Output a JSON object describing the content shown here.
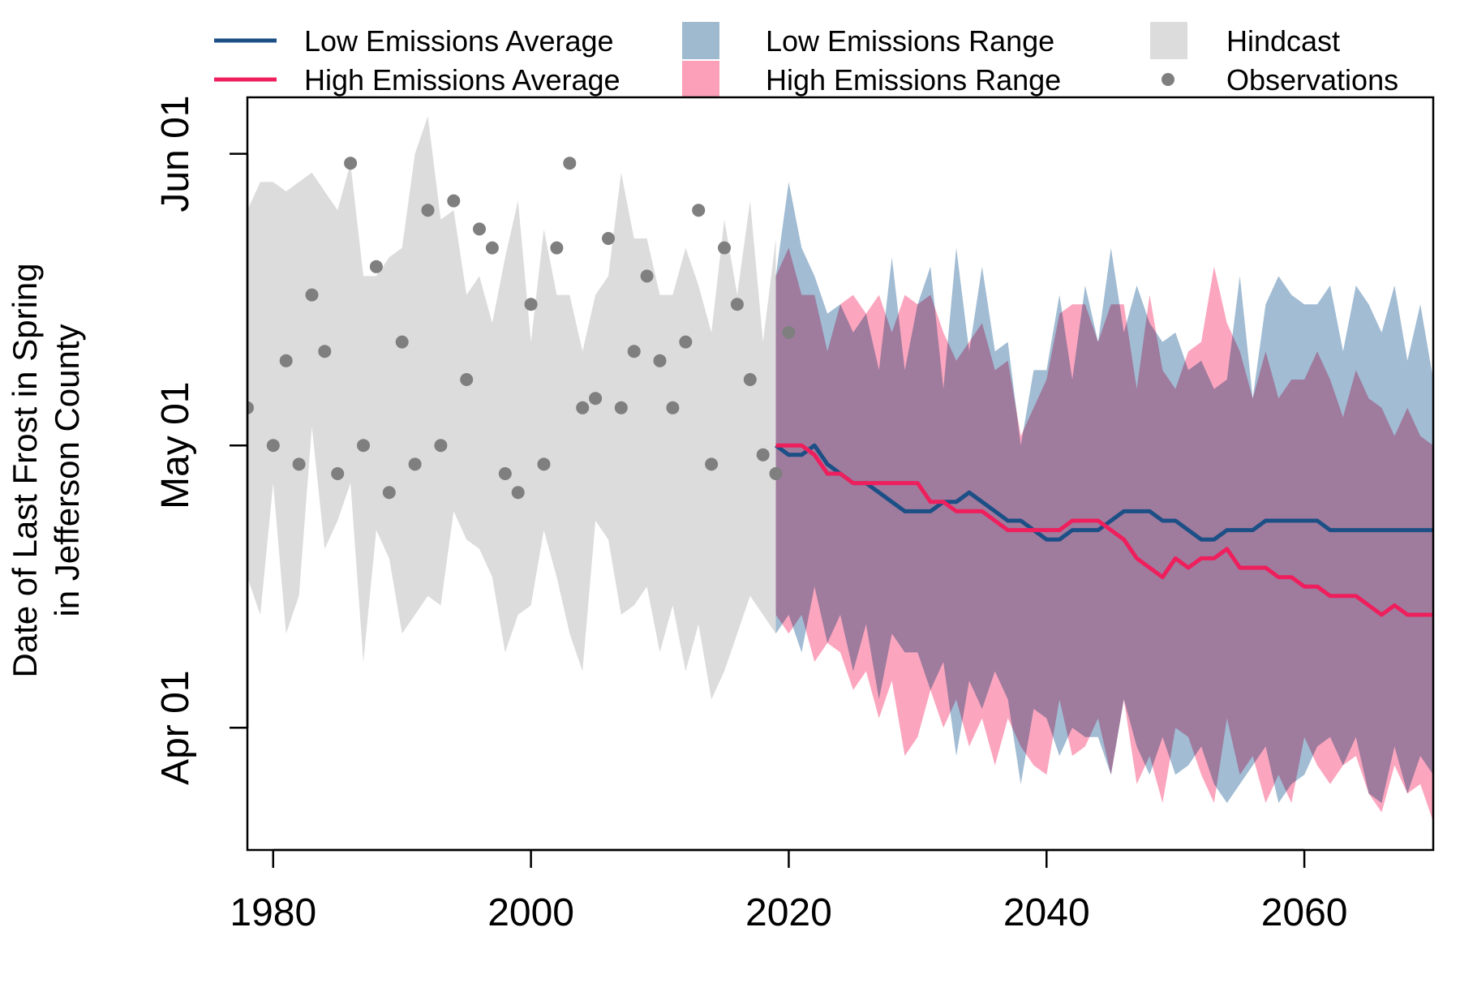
{
  "chart_data": {
    "type": "line",
    "xlabel": "",
    "ylabel": [
      "Date of Last Frost in Spring",
      "in Jefferson County"
    ],
    "xlim": [
      1978,
      2070
    ],
    "ylim": [
      "2000-03-19",
      "2000-06-07"
    ],
    "x_ticks": [
      "1980",
      "2000",
      "2020",
      "2040",
      "2060"
    ],
    "y_ticks": [
      {
        "date": "2000-04-01",
        "label": "Apr 01"
      },
      {
        "date": "2000-05-01",
        "label": "May 01"
      },
      {
        "date": "2000-06-01",
        "label": "Jun 01"
      }
    ],
    "legend": {
      "placement": "top",
      "items": [
        {
          "label": "Low Emissions Average",
          "kind": "line",
          "color": "#1b4f85"
        },
        {
          "label": "High Emissions Average",
          "kind": "line",
          "color": "#ee1f5c"
        },
        {
          "label": "Low Emissions Range",
          "kind": "box",
          "color": "#9fb9cf"
        },
        {
          "label": "High Emissions Range",
          "kind": "box",
          "color": "#fba0b8"
        },
        {
          "label": "Hindcast",
          "kind": "box",
          "color": "#dcdcdc"
        },
        {
          "label": "Observations",
          "kind": "point",
          "color": "#7f7f7f"
        }
      ]
    },
    "colors": {
      "hindcast": "#dcdcdc",
      "low_range": "#6f98bb",
      "high_range": "#f96b92",
      "overlap": "#9f84a6",
      "low_avg": "#1b4f85",
      "high_avg": "#ee1f5c",
      "obs": "#7f7f7f"
    },
    "hindcast": {
      "x": [
        1978,
        1979,
        1980,
        1981,
        1982,
        1983,
        1984,
        1985,
        1986,
        1987,
        1988,
        1989,
        1990,
        1991,
        1992,
        1993,
        1994,
        1995,
        1996,
        1997,
        1998,
        1999,
        2000,
        2001,
        2002,
        2003,
        2004,
        2005,
        2006,
        2007,
        2008,
        2009,
        2010,
        2011,
        2012,
        2013,
        2014,
        2015,
        2016,
        2017,
        2018,
        2019
      ],
      "upper": [
        "2000-05-26",
        "2000-05-29",
        "2000-05-29",
        "2000-05-28",
        "2000-05-29",
        "2000-05-30",
        "2000-05-28",
        "2000-05-26",
        "2000-05-31",
        "2000-05-19",
        "2000-05-19",
        "2000-05-21",
        "2000-05-22",
        "2000-06-01",
        "2000-06-05",
        "2000-05-25",
        "2000-05-26",
        "2000-05-17",
        "2000-05-19",
        "2000-05-14",
        "2000-05-21",
        "2000-05-27",
        "2000-05-12",
        "2000-05-24",
        "2000-05-17",
        "2000-05-17",
        "2000-05-11",
        "2000-05-17",
        "2000-05-19",
        "2000-05-30",
        "2000-05-23",
        "2000-05-23",
        "2000-05-17",
        "2000-05-17",
        "2000-05-22",
        "2000-05-18",
        "2000-05-13",
        "2000-05-25",
        "2000-05-17",
        "2000-05-27",
        "2000-05-12",
        "2000-05-23"
      ],
      "lower": [
        "2000-04-17",
        "2000-04-13",
        "2000-04-27",
        "2000-04-11",
        "2000-04-15",
        "2000-05-03",
        "2000-04-20",
        "2000-04-23",
        "2000-04-27",
        "2000-04-08",
        "2000-04-22",
        "2000-04-19",
        "2000-04-11",
        "2000-04-13",
        "2000-04-15",
        "2000-04-14",
        "2000-04-24",
        "2000-04-21",
        "2000-04-20",
        "2000-04-17",
        "2000-04-09",
        "2000-04-13",
        "2000-04-14",
        "2000-04-22",
        "2000-04-17",
        "2000-04-11",
        "2000-04-07",
        "2000-04-23",
        "2000-04-21",
        "2000-04-13",
        "2000-04-14",
        "2000-04-16",
        "2000-04-09",
        "2000-04-14",
        "2000-04-07",
        "2000-04-12",
        "2000-04-04",
        "2000-04-07",
        "2000-04-11",
        "2000-04-15",
        "2000-04-13",
        "2000-04-11"
      ]
    },
    "observations": {
      "x": [
        1978,
        1980,
        1981,
        1982,
        1983,
        1984,
        1985,
        1986,
        1987,
        1988,
        1989,
        1990,
        1991,
        1992,
        1993,
        1994,
        1995,
        1996,
        1997,
        1998,
        1999,
        2000,
        2001,
        2002,
        2003,
        2004,
        2005,
        2006,
        2007,
        2008,
        2009,
        2010,
        2011,
        2012,
        2013,
        2014,
        2015,
        2016,
        2017,
        2018,
        2019,
        2020
      ],
      "y": [
        "2000-05-05",
        "2000-05-01",
        "2000-05-10",
        "2000-04-29",
        "2000-05-17",
        "2000-05-11",
        "2000-04-28",
        "2000-05-31",
        "2000-05-01",
        "2000-05-20",
        "2000-04-26",
        "2000-05-12",
        "2000-04-29",
        "2000-05-26",
        "2000-05-01",
        "2000-05-27",
        "2000-05-08",
        "2000-05-24",
        "2000-05-22",
        "2000-04-28",
        "2000-04-26",
        "2000-05-16",
        "2000-04-29",
        "2000-05-22",
        "2000-05-31",
        "2000-05-05",
        "2000-05-06",
        "2000-05-23",
        "2000-05-05",
        "2000-05-11",
        "2000-05-19",
        "2000-05-10",
        "2000-05-05",
        "2000-05-12",
        "2000-05-26",
        "2000-04-29",
        "2000-05-22",
        "2000-05-16",
        "2000-05-08",
        "2000-04-30",
        "2000-04-28",
        "2000-05-13"
      ]
    },
    "low_range": {
      "x": [
        2019,
        2020,
        2021,
        2022,
        2023,
        2024,
        2025,
        2026,
        2027,
        2028,
        2029,
        2030,
        2031,
        2032,
        2033,
        2034,
        2035,
        2036,
        2037,
        2038,
        2039,
        2040,
        2041,
        2042,
        2043,
        2044,
        2045,
        2046,
        2047,
        2048,
        2049,
        2050,
        2051,
        2052,
        2053,
        2054,
        2055,
        2056,
        2057,
        2058,
        2059,
        2060,
        2061,
        2062,
        2063,
        2064,
        2065,
        2066,
        2067,
        2068,
        2069,
        2070
      ],
      "upper": [
        "2000-05-19",
        "2000-05-29",
        "2000-05-22",
        "2000-05-19",
        "2000-05-15",
        "2000-05-16",
        "2000-05-13",
        "2000-05-15",
        "2000-05-09",
        "2000-05-21",
        "2000-05-09",
        "2000-05-16",
        "2000-05-20",
        "2000-05-07",
        "2000-05-22",
        "2000-05-11",
        "2000-05-20",
        "2000-05-11",
        "2000-05-12",
        "2000-05-01",
        "2000-05-09",
        "2000-05-09",
        "2000-05-17",
        "2000-05-08",
        "2000-05-18",
        "2000-05-12",
        "2000-05-22",
        "2000-05-13",
        "2000-05-18",
        "2000-05-14",
        "2000-05-12",
        "2000-05-13",
        "2000-05-09",
        "2000-05-10",
        "2000-05-07",
        "2000-05-08",
        "2000-05-19",
        "2000-05-06",
        "2000-05-16",
        "2000-05-19",
        "2000-05-17",
        "2000-05-16",
        "2000-05-16",
        "2000-05-18",
        "2000-05-11",
        "2000-05-18",
        "2000-05-16",
        "2000-05-13",
        "2000-05-18",
        "2000-05-10",
        "2000-05-16",
        "2000-05-08"
      ],
      "lower": [
        "2000-04-11",
        "2000-04-13",
        "2000-04-09",
        "2000-04-16",
        "2000-04-10",
        "2000-04-13",
        "2000-04-07",
        "2000-04-12",
        "2000-04-04",
        "2000-04-11",
        "2000-04-09",
        "2000-04-09",
        "2000-04-05",
        "2000-04-08",
        "2000-03-29",
        "2000-04-06",
        "2000-04-03",
        "2000-04-07",
        "2000-04-04",
        "2000-03-26",
        "2000-04-03",
        "2000-04-02",
        "2000-03-29",
        "2000-04-01",
        "2000-03-31",
        "2000-03-31",
        "2000-03-27",
        "2000-04-04",
        "2000-03-30",
        "2000-03-27",
        "2000-03-31",
        "2000-03-27",
        "2000-03-28",
        "2000-03-30",
        "2000-03-26",
        "2000-03-24",
        "2000-03-26",
        "2000-03-28",
        "2000-03-30",
        "2000-03-24",
        "2000-03-26",
        "2000-03-27",
        "2000-03-30",
        "2000-03-31",
        "2000-03-28",
        "2000-03-31",
        "2000-03-25",
        "2000-03-24",
        "2000-03-30",
        "2000-03-25",
        "2000-03-29",
        "2000-03-27"
      ]
    },
    "high_range": {
      "x": [
        2019,
        2020,
        2021,
        2022,
        2023,
        2024,
        2025,
        2026,
        2027,
        2028,
        2029,
        2030,
        2031,
        2032,
        2033,
        2034,
        2035,
        2036,
        2037,
        2038,
        2039,
        2040,
        2041,
        2042,
        2043,
        2044,
        2045,
        2046,
        2047,
        2048,
        2049,
        2050,
        2051,
        2052,
        2053,
        2054,
        2055,
        2056,
        2057,
        2058,
        2059,
        2060,
        2061,
        2062,
        2063,
        2064,
        2065,
        2066,
        2067,
        2068,
        2069,
        2070
      ],
      "upper": [
        "2000-05-19",
        "2000-05-22",
        "2000-05-17",
        "2000-05-17",
        "2000-05-11",
        "2000-05-16",
        "2000-05-17",
        "2000-05-15",
        "2000-05-17",
        "2000-05-13",
        "2000-05-17",
        "2000-05-16",
        "2000-05-17",
        "2000-05-13",
        "2000-05-10",
        "2000-05-12",
        "2000-05-14",
        "2000-05-09",
        "2000-05-10",
        "2000-05-02",
        "2000-05-05",
        "2000-05-08",
        "2000-05-15",
        "2000-05-16",
        "2000-05-16",
        "2000-05-12",
        "2000-05-16",
        "2000-05-16",
        "2000-05-07",
        "2000-05-17",
        "2000-05-09",
        "2000-05-07",
        "2000-05-11",
        "2000-05-12",
        "2000-05-20",
        "2000-05-14",
        "2000-05-11",
        "2000-05-06",
        "2000-05-11",
        "2000-05-06",
        "2000-05-08",
        "2000-05-08",
        "2000-05-11",
        "2000-05-08",
        "2000-05-04",
        "2000-05-09",
        "2000-05-06",
        "2000-05-05",
        "2000-05-02",
        "2000-05-05",
        "2000-05-02",
        "2000-05-01"
      ],
      "lower": [
        "2000-04-13",
        "2000-04-11",
        "2000-04-13",
        "2000-04-08",
        "2000-04-10",
        "2000-04-09",
        "2000-04-05",
        "2000-04-07",
        "2000-04-02",
        "2000-04-06",
        "2000-03-29",
        "2000-03-31",
        "2000-04-05",
        "2000-04-01",
        "2000-04-04",
        "2000-03-30",
        "2000-04-02",
        "2000-03-28",
        "2000-04-02",
        "2000-03-30",
        "2000-03-28",
        "2000-03-27",
        "2000-04-04",
        "2000-03-29",
        "2000-03-30",
        "2000-04-02",
        "2000-03-27",
        "2000-04-04",
        "2000-03-26",
        "2000-03-29",
        "2000-03-24",
        "2000-04-01",
        "2000-03-31",
        "2000-03-27",
        "2000-03-24",
        "2000-04-02",
        "2000-03-27",
        "2000-03-29",
        "2000-03-24",
        "2000-03-27",
        "2000-03-24",
        "2000-03-31",
        "2000-03-28",
        "2000-03-26",
        "2000-03-28",
        "2000-03-29",
        "2000-03-25",
        "2000-03-23",
        "2000-03-28",
        "2000-03-25",
        "2000-03-26",
        "2000-03-22"
      ]
    },
    "series": [
      {
        "name": "Low Emissions Average",
        "x": [
          2019,
          2020,
          2021,
          2022,
          2023,
          2024,
          2025,
          2026,
          2027,
          2028,
          2029,
          2030,
          2031,
          2032,
          2033,
          2034,
          2035,
          2036,
          2037,
          2038,
          2039,
          2040,
          2041,
          2042,
          2043,
          2044,
          2045,
          2046,
          2047,
          2048,
          2049,
          2050,
          2051,
          2052,
          2053,
          2054,
          2055,
          2056,
          2057,
          2058,
          2059,
          2060,
          2061,
          2062,
          2063,
          2064,
          2065,
          2066,
          2067,
          2068,
          2069,
          2070
        ],
        "values": [
          "2000-05-01",
          "2000-04-30",
          "2000-04-30",
          "2000-05-01",
          "2000-04-29",
          "2000-04-28",
          "2000-04-27",
          "2000-04-27",
          "2000-04-26",
          "2000-04-25",
          "2000-04-24",
          "2000-04-24",
          "2000-04-24",
          "2000-04-25",
          "2000-04-25",
          "2000-04-26",
          "2000-04-25",
          "2000-04-24",
          "2000-04-23",
          "2000-04-23",
          "2000-04-22",
          "2000-04-21",
          "2000-04-21",
          "2000-04-22",
          "2000-04-22",
          "2000-04-22",
          "2000-04-23",
          "2000-04-24",
          "2000-04-24",
          "2000-04-24",
          "2000-04-23",
          "2000-04-23",
          "2000-04-22",
          "2000-04-21",
          "2000-04-21",
          "2000-04-22",
          "2000-04-22",
          "2000-04-22",
          "2000-04-23",
          "2000-04-23",
          "2000-04-23",
          "2000-04-23",
          "2000-04-23",
          "2000-04-22",
          "2000-04-22",
          "2000-04-22",
          "2000-04-22",
          "2000-04-22",
          "2000-04-22",
          "2000-04-22",
          "2000-04-22",
          "2000-04-22"
        ]
      },
      {
        "name": "High Emissions Average",
        "x": [
          2019,
          2020,
          2021,
          2022,
          2023,
          2024,
          2025,
          2026,
          2027,
          2028,
          2029,
          2030,
          2031,
          2032,
          2033,
          2034,
          2035,
          2036,
          2037,
          2038,
          2039,
          2040,
          2041,
          2042,
          2043,
          2044,
          2045,
          2046,
          2047,
          2048,
          2049,
          2050,
          2051,
          2052,
          2053,
          2054,
          2055,
          2056,
          2057,
          2058,
          2059,
          2060,
          2061,
          2062,
          2063,
          2064,
          2065,
          2066,
          2067,
          2068,
          2069,
          2070
        ],
        "values": [
          "2000-05-01",
          "2000-05-01",
          "2000-05-01",
          "2000-04-30",
          "2000-04-28",
          "2000-04-28",
          "2000-04-27",
          "2000-04-27",
          "2000-04-27",
          "2000-04-27",
          "2000-04-27",
          "2000-04-27",
          "2000-04-25",
          "2000-04-25",
          "2000-04-24",
          "2000-04-24",
          "2000-04-24",
          "2000-04-23",
          "2000-04-22",
          "2000-04-22",
          "2000-04-22",
          "2000-04-22",
          "2000-04-22",
          "2000-04-23",
          "2000-04-23",
          "2000-04-23",
          "2000-04-22",
          "2000-04-21",
          "2000-04-19",
          "2000-04-18",
          "2000-04-17",
          "2000-04-19",
          "2000-04-18",
          "2000-04-19",
          "2000-04-19",
          "2000-04-20",
          "2000-04-18",
          "2000-04-18",
          "2000-04-18",
          "2000-04-17",
          "2000-04-17",
          "2000-04-16",
          "2000-04-16",
          "2000-04-15",
          "2000-04-15",
          "2000-04-15",
          "2000-04-14",
          "2000-04-13",
          "2000-04-14",
          "2000-04-13",
          "2000-04-13",
          "2000-04-13"
        ]
      }
    ]
  }
}
